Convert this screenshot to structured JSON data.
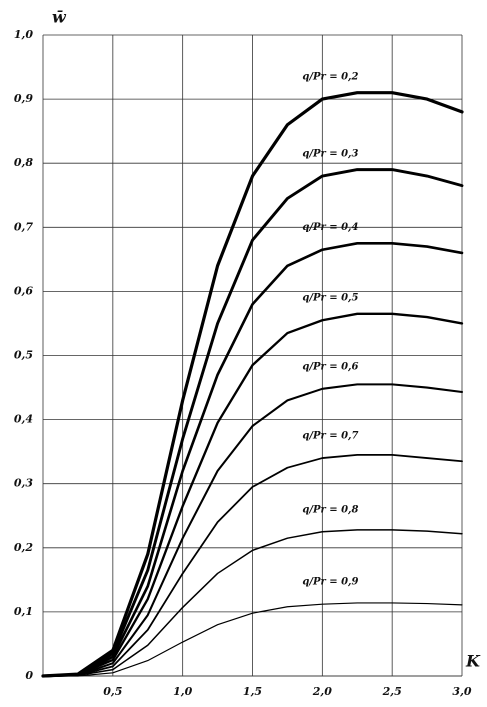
{
  "chart_data": {
    "type": "line",
    "x_label": "K",
    "y_label": "w̄",
    "x": [
      0,
      0.25,
      0.5,
      0.75,
      1.0,
      1.25,
      1.5,
      1.75,
      2.0,
      2.25,
      2.5,
      2.75,
      3.0
    ],
    "series": [
      {
        "name": "q/Pr = 0,2",
        "color": "#000000",
        "values": [
          0,
          0.003,
          0.04,
          0.19,
          0.43,
          0.64,
          0.78,
          0.86,
          0.9,
          0.91,
          0.91,
          0.9,
          0.88
        ]
      },
      {
        "name": "q/Pr = 0,3",
        "color": "#000000",
        "values": [
          0,
          0.002,
          0.035,
          0.165,
          0.37,
          0.55,
          0.68,
          0.745,
          0.78,
          0.79,
          0.79,
          0.78,
          0.765
        ]
      },
      {
        "name": "q/Pr = 0,4",
        "color": "#000000",
        "values": [
          0,
          0.002,
          0.03,
          0.14,
          0.32,
          0.47,
          0.58,
          0.64,
          0.665,
          0.675,
          0.675,
          0.67,
          0.66
        ]
      },
      {
        "name": "q/Pr = 0,5",
        "color": "#000000",
        "values": [
          0,
          0.002,
          0.025,
          0.12,
          0.265,
          0.395,
          0.485,
          0.535,
          0.555,
          0.565,
          0.565,
          0.56,
          0.55
        ]
      },
      {
        "name": "q/Pr = 0,6",
        "color": "#000000",
        "values": [
          0,
          0.001,
          0.02,
          0.095,
          0.215,
          0.32,
          0.39,
          0.43,
          0.448,
          0.455,
          0.455,
          0.45,
          0.443
        ]
      },
      {
        "name": "q/Pr = 0,7",
        "color": "#000000",
        "values": [
          0,
          0.001,
          0.015,
          0.072,
          0.16,
          0.24,
          0.295,
          0.325,
          0.34,
          0.345,
          0.345,
          0.34,
          0.335
        ]
      },
      {
        "name": "q/Pr = 0,8",
        "color": "#000000",
        "values": [
          0,
          0.001,
          0.01,
          0.048,
          0.107,
          0.16,
          0.196,
          0.215,
          0.225,
          0.228,
          0.228,
          0.226,
          0.222
        ]
      },
      {
        "name": "q/Pr = 0,9",
        "color": "#000000",
        "values": [
          0,
          0,
          0.005,
          0.024,
          0.053,
          0.08,
          0.098,
          0.108,
          0.112,
          0.114,
          0.114,
          0.113,
          0.111
        ]
      }
    ],
    "xlim": [
      0,
      3.0
    ],
    "ylim": [
      0,
      1.0
    ],
    "xticks": [
      {
        "value": 0.5,
        "label": "0,5"
      },
      {
        "value": 1.0,
        "label": "1,0"
      },
      {
        "value": 1.5,
        "label": "1,5"
      },
      {
        "value": 2.0,
        "label": "2,0"
      },
      {
        "value": 2.5,
        "label": "2,5"
      },
      {
        "value": 3.0,
        "label": "3,0"
      }
    ],
    "yticks": [
      0,
      {
        "value": 0.1,
        "label": "0,1"
      },
      {
        "value": 0.2,
        "label": "0,2"
      },
      {
        "value": 0.3,
        "label": "0,3"
      },
      {
        "value": 0.4,
        "label": "0,4"
      },
      {
        "value": 0.5,
        "label": "0,5"
      },
      {
        "value": 0.6,
        "label": "0,6"
      },
      {
        "value": 0.7,
        "label": "0,7"
      },
      {
        "value": 0.8,
        "label": "0,8"
      },
      {
        "value": 0.9,
        "label": "0,9"
      },
      {
        "value": 1.0,
        "label": "1,0"
      }
    ],
    "grid": true
  }
}
